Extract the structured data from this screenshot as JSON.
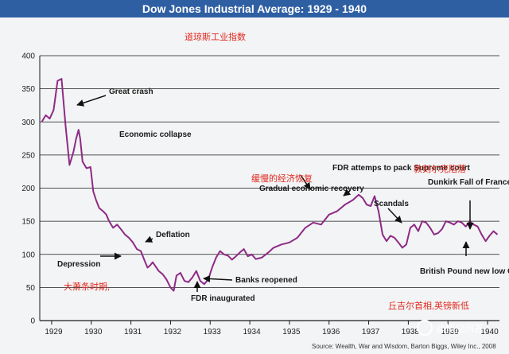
{
  "title": "Dow Jones Industrial Average: 1929 - 1940",
  "source": "Source: Wealth, War and Wisdom, Barton Biggs, Wiley Inc., 2008",
  "watermark": "@悟空问答",
  "colors": {
    "title_bg": "#2f5fa3",
    "line": "#8e2a86",
    "grid": "#1a1a1a",
    "arrow": "#111111",
    "red_text": "#e0281f"
  },
  "chart_data": {
    "type": "line",
    "title": "Dow Jones Industrial Average: 1929 - 1940",
    "xlabel": "",
    "ylabel": "",
    "xlim": [
      1928.7,
      1940.3
    ],
    "ylim": [
      0,
      400
    ],
    "y_ticks": [
      0,
      50,
      100,
      150,
      200,
      250,
      300,
      350,
      400
    ],
    "x_ticks": [
      "1929",
      "1930",
      "1931",
      "1932",
      "1933",
      "1934",
      "1935",
      "1936",
      "1937",
      "1938",
      "1939",
      "1940"
    ],
    "grid": true,
    "series": [
      {
        "x": [
          1928.75,
          1928.85,
          1928.95,
          1929.05,
          1929.15,
          1929.25,
          1929.35,
          1929.45,
          1929.55,
          1929.62,
          1929.68,
          1929.72,
          1929.78,
          1929.88,
          1929.98,
          1930.05,
          1930.12,
          1930.2,
          1930.3,
          1930.38,
          1930.45,
          1930.55,
          1930.65,
          1930.75,
          1930.85,
          1930.95,
          1931.05,
          1931.15,
          1931.25,
          1931.35,
          1931.42,
          1931.48,
          1931.55,
          1931.62,
          1931.7,
          1931.8,
          1931.9,
          1932.0,
          1932.08,
          1932.15,
          1932.25,
          1932.35,
          1932.45,
          1932.55,
          1932.65,
          1932.75,
          1932.85,
          1932.95,
          1933.05,
          1933.15,
          1933.25,
          1933.35,
          1933.45,
          1933.55,
          1933.65,
          1933.75,
          1933.85,
          1933.95,
          1934.05,
          1934.15,
          1934.3,
          1934.45,
          1934.6,
          1934.8,
          1935.0,
          1935.2,
          1935.4,
          1935.6,
          1935.8,
          1936.0,
          1936.2,
          1936.4,
          1936.6,
          1936.75,
          1936.85,
          1936.95,
          1937.05,
          1937.15,
          1937.25,
          1937.35,
          1937.45,
          1937.55,
          1937.65,
          1937.75,
          1937.85,
          1937.95,
          1938.05,
          1938.15,
          1938.25,
          1938.35,
          1938.45,
          1938.55,
          1938.65,
          1938.75,
          1938.85,
          1938.95,
          1939.05,
          1939.15,
          1939.25,
          1939.35,
          1939.45,
          1939.55,
          1939.65,
          1939.75,
          1939.85,
          1939.95,
          1940.05,
          1940.15,
          1940.25
        ],
        "values": [
          300,
          310,
          305,
          318,
          362,
          365,
          295,
          235,
          255,
          275,
          288,
          275,
          240,
          230,
          232,
          195,
          182,
          170,
          165,
          160,
          150,
          140,
          145,
          138,
          130,
          125,
          118,
          108,
          105,
          90,
          80,
          83,
          88,
          82,
          75,
          70,
          62,
          50,
          45,
          68,
          72,
          60,
          58,
          65,
          75,
          60,
          55,
          62,
          80,
          95,
          105,
          100,
          98,
          92,
          97,
          103,
          108,
          97,
          100,
          93,
          95,
          102,
          110,
          115,
          118,
          125,
          140,
          148,
          145,
          160,
          165,
          175,
          182,
          190,
          185,
          175,
          173,
          188,
          165,
          130,
          120,
          128,
          125,
          118,
          110,
          115,
          140,
          145,
          135,
          150,
          148,
          140,
          130,
          132,
          138,
          150,
          148,
          145,
          150,
          148,
          142,
          150,
          145,
          142,
          130,
          120,
          128,
          135,
          130
        ]
      }
    ],
    "annotations": [
      "Great crash",
      "Economic collapse",
      "Deflation",
      "Depression",
      "Banks reopened",
      "FDR inaugurated",
      "Gradual economic recovery",
      "FDR attemps to pack Supreme court",
      "Scandals",
      "Dunkirk Fall of France",
      "British Pound new low Churchill PM"
    ],
    "cn_notes": [
      "道琼斯工业指数",
      "缓慢的经济恢复",
      "敦刻尔克陷落",
      "大萧条时期,",
      "丘吉尔首相,英镑新低"
    ]
  }
}
